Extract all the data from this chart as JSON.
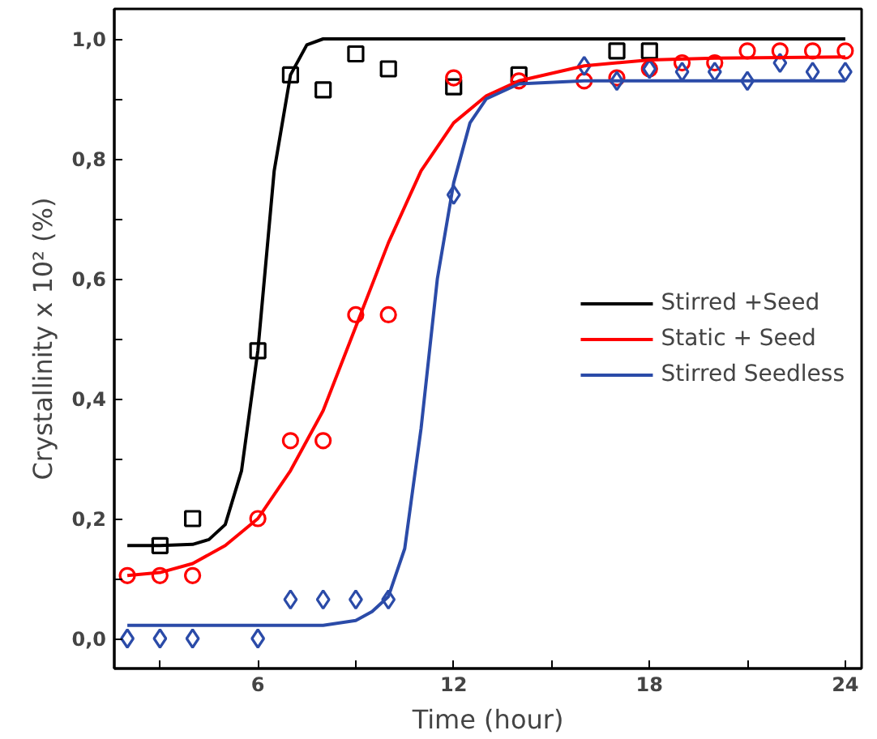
{
  "chart_data": {
    "type": "scatter",
    "xlabel": "Time (hour)",
    "ylabel": "Crystallinity x 10² (%)",
    "xlim": [
      1.6,
      24.5
    ],
    "ylim": [
      -0.05,
      1.05
    ],
    "xticks": [
      {
        "value": 3,
        "label": null
      },
      6,
      {
        "value": 9,
        "label": null
      },
      12,
      {
        "value": 15,
        "label": null
      },
      18,
      {
        "value": 21,
        "label": null
      },
      24
    ],
    "yticks": [
      {
        "value": 0,
        "label": "0,0"
      },
      {
        "value": 0.1,
        "label": null
      },
      {
        "value": 0.2,
        "label": "0,2"
      },
      {
        "value": 0.3,
        "label": null
      },
      {
        "value": 0.4,
        "label": "0,4"
      },
      {
        "value": 0.5,
        "label": null
      },
      {
        "value": 0.6,
        "label": "0,6"
      },
      {
        "value": 0.7,
        "label": null
      },
      {
        "value": 0.8,
        "label": "0,8"
      },
      {
        "value": 0.9,
        "label": null
      },
      {
        "value": 1.0,
        "label": "1,0"
      }
    ],
    "grid": false,
    "legend": "right",
    "series": [
      {
        "marker": "square",
        "color": "#000000",
        "x": [
          3,
          4,
          6,
          7,
          8,
          9,
          10,
          12,
          14,
          17,
          18
        ],
        "values": [
          0.155,
          0.2,
          0.48,
          0.94,
          0.915,
          0.975,
          0.95,
          0.92,
          0.94,
          0.98,
          0.98
        ]
      },
      {
        "marker": "circle",
        "color": "#ff0000",
        "x": [
          2,
          3,
          4,
          6,
          7,
          8,
          9,
          10,
          12,
          14,
          16,
          17,
          18,
          19,
          20,
          21,
          22,
          23,
          24
        ],
        "values": [
          0.105,
          0.105,
          0.105,
          0.2,
          0.33,
          0.33,
          0.54,
          0.54,
          0.935,
          0.93,
          0.93,
          0.935,
          0.95,
          0.96,
          0.96,
          0.98,
          0.98,
          0.98,
          0.98
        ]
      },
      {
        "marker": "diamond",
        "color": "#2b4ba8",
        "x": [
          2,
          3,
          4,
          6,
          7,
          8,
          9,
          10,
          12,
          16,
          17,
          18,
          19,
          20,
          21,
          22,
          23,
          24
        ],
        "values": [
          0,
          0,
          0,
          0,
          0.065,
          0.065,
          0.065,
          0.065,
          0.74,
          0.955,
          0.93,
          0.95,
          0.945,
          0.945,
          0.93,
          0.96,
          0.945,
          0.945
        ]
      },
      {
        "type": "line",
        "name": "Stirred +Seed",
        "color": "#000000",
        "x": [
          2,
          3,
          4,
          4.5,
          5,
          5.5,
          6,
          6.5,
          7,
          7.5,
          8,
          10,
          24
        ],
        "values": [
          0.155,
          0.155,
          0.157,
          0.165,
          0.19,
          0.28,
          0.48,
          0.78,
          0.94,
          0.99,
          1.0,
          1.0,
          1.0
        ]
      },
      {
        "type": "line",
        "name": "Static + Seed",
        "color": "#ff0000",
        "x": [
          2,
          3,
          4,
          5,
          6,
          7,
          8,
          9,
          10,
          11,
          12,
          13,
          14,
          16,
          18,
          20,
          24
        ],
        "values": [
          0.105,
          0.11,
          0.125,
          0.155,
          0.2,
          0.28,
          0.38,
          0.52,
          0.66,
          0.78,
          0.86,
          0.905,
          0.93,
          0.955,
          0.965,
          0.968,
          0.97
        ]
      },
      {
        "type": "line",
        "name": "Stirred Seedless",
        "color": "#2b4ba8",
        "x": [
          2,
          8,
          9,
          9.5,
          10,
          10.5,
          11,
          11.5,
          12,
          12.5,
          13,
          14,
          16,
          24
        ],
        "values": [
          0.022,
          0.022,
          0.03,
          0.045,
          0.07,
          0.15,
          0.35,
          0.6,
          0.76,
          0.86,
          0.9,
          0.925,
          0.93,
          0.93
        ]
      }
    ]
  }
}
